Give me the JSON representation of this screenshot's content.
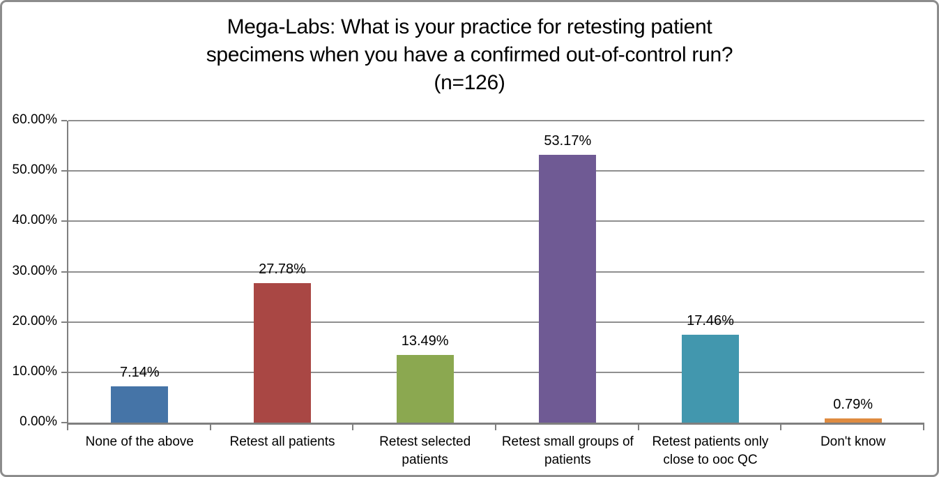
{
  "window": {
    "background": "#ffffff",
    "border_color": "#8c8c8c"
  },
  "chart_data": {
    "type": "bar",
    "title": "Mega-Labs: What is your practice for retesting patient specimens when you have a confirmed out-of-control run? (n=126)",
    "title_lines": [
      "Mega-Labs: What is your practice for retesting patient",
      "specimens when you have a confirmed out-of-control run?",
      "(n=126)"
    ],
    "categories": [
      "None of the above",
      "Retest all patients",
      "Retest selected patients",
      "Retest small groups of patients",
      "Retest patients only close to ooc QC",
      "Don't know"
    ],
    "values": [
      7.14,
      27.78,
      13.49,
      53.17,
      17.46,
      0.79
    ],
    "value_labels": [
      "7.14%",
      "27.78%",
      "13.49%",
      "53.17%",
      "17.46%",
      "0.79%"
    ],
    "bar_colors": [
      "#4574A7",
      "#A94744",
      "#8BA850",
      "#6F5A94",
      "#4297AE",
      "#DF8B40"
    ],
    "ylim": [
      0,
      60
    ],
    "ytick_step": 10,
    "ytick_labels": [
      "0.00%",
      "10.00%",
      "20.00%",
      "30.00%",
      "40.00%",
      "50.00%",
      "60.00%"
    ],
    "xlabel": "",
    "ylabel": "",
    "grid": true,
    "legend_position": "none",
    "axis_color": "#7f7f7f",
    "gridline_color": "#8f8f8f",
    "text_color": "#000000"
  }
}
